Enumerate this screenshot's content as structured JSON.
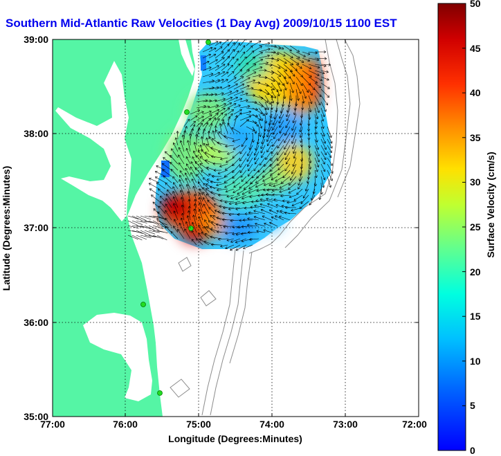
{
  "title": "Southern Mid-Atlantic Raw Velocities (1 Day Avg) 2009/10/15 1100 EST",
  "x_axis": {
    "label": "Longitude (Degrees:Minutes)",
    "ticks": [
      "77:00",
      "76:00",
      "75:00",
      "74:00",
      "73:00",
      "72:00"
    ],
    "range_degrees_west": [
      77,
      72
    ]
  },
  "y_axis": {
    "label": "Latitude (Degrees:Minutes)",
    "ticks": [
      "39:00",
      "38:00",
      "37:00",
      "36:00",
      "35:00"
    ],
    "range_degrees_north": [
      35,
      39
    ]
  },
  "colorbar": {
    "label": "Surface Velocity (cm/s)",
    "ticks": [
      "50",
      "45",
      "40",
      "35",
      "30",
      "25",
      "20",
      "15",
      "10",
      "5",
      "0"
    ],
    "range": [
      0,
      50
    ],
    "colormap": "jet"
  },
  "colors": {
    "land": "#55f5a5",
    "water": "#ffffff",
    "title": "#0000ee",
    "bathymetry": "#8c8c8c",
    "grid": "#000000",
    "station": "#22dd22"
  },
  "grid": "dotted",
  "radar_stations_visible": 5
}
